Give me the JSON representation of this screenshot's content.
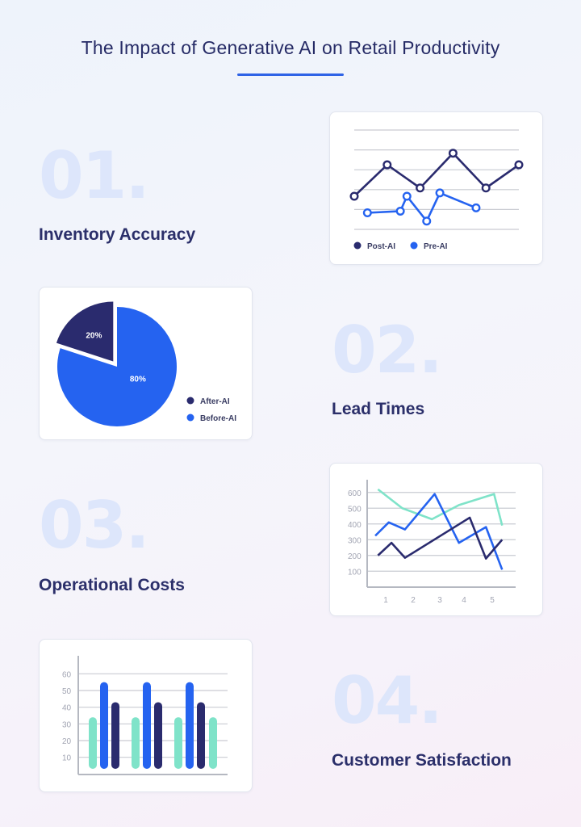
{
  "page": {
    "title": "The Impact of Generative AI on Retail Productivity"
  },
  "sections": [
    {
      "number": "01.",
      "label": "Inventory Accuracy"
    },
    {
      "number": "02.",
      "label": "Lead Times"
    },
    {
      "number": "03.",
      "label": "Operational Costs"
    },
    {
      "number": "04.",
      "label": "Customer Satisfaction"
    }
  ],
  "colors": {
    "navy": "#2a2b6e",
    "blue": "#2563f0",
    "mint": "#7fe3c9",
    "grid": "#c9cbd2",
    "text": "#262b66"
  },
  "chart_data": [
    {
      "type": "line",
      "title": "",
      "grid": true,
      "legend": "bottom",
      "ylim": [
        0,
        6
      ],
      "series": [
        {
          "name": "Post-AI",
          "color": "#2a2b6e",
          "points": [
            [
              1,
              2.0
            ],
            [
              2,
              3.9
            ],
            [
              3,
              2.5
            ],
            [
              4,
              4.6
            ],
            [
              5,
              2.5
            ],
            [
              6,
              3.9
            ]
          ]
        },
        {
          "name": "Pre-AI",
          "color": "#2563f0",
          "points": [
            [
              1.4,
              1.0
            ],
            [
              2.4,
              1.1
            ],
            [
              2.6,
              2.0
            ],
            [
              3.2,
              0.5
            ],
            [
              3.6,
              2.2
            ],
            [
              4.7,
              1.3
            ]
          ]
        }
      ]
    },
    {
      "type": "pie",
      "title": "",
      "legend": "right",
      "slices": [
        {
          "name": "After-AI",
          "value": 20,
          "label": "20%",
          "color": "#2a2b6e"
        },
        {
          "name": "Before-AI",
          "value": 80,
          "label": "80%",
          "color": "#2563f0"
        }
      ]
    },
    {
      "type": "line",
      "title": "",
      "grid": true,
      "x_ticks": [
        "1",
        "2",
        "3",
        "4",
        "5"
      ],
      "y_ticks": [
        "100",
        "200",
        "300",
        "400",
        "500",
        "600"
      ],
      "ylim": [
        50,
        650
      ],
      "xlim": [
        0.5,
        6.0
      ],
      "series": [
        {
          "color": "#7fe3c9",
          "points": [
            [
              0.9,
              620
            ],
            [
              1.8,
              500
            ],
            [
              2.9,
              430
            ],
            [
              3.9,
              520
            ],
            [
              5.2,
              590
            ],
            [
              5.5,
              390
            ]
          ]
        },
        {
          "color": "#2563f0",
          "points": [
            [
              0.8,
              325
            ],
            [
              1.3,
              410
            ],
            [
              1.9,
              365
            ],
            [
              3.0,
              590
            ],
            [
              3.9,
              280
            ],
            [
              4.9,
              380
            ],
            [
              5.5,
              110
            ]
          ]
        },
        {
          "color": "#2a2b6e",
          "points": [
            [
              0.9,
              200
            ],
            [
              1.4,
              280
            ],
            [
              1.9,
              185
            ],
            [
              4.3,
              440
            ],
            [
              4.9,
              180
            ],
            [
              5.5,
              300
            ]
          ]
        }
      ]
    },
    {
      "type": "bar",
      "title": "",
      "grid": true,
      "y_ticks": [
        "10",
        "20",
        "30",
        "40",
        "50",
        "60"
      ],
      "ylim": [
        5,
        65
      ],
      "groups": 3,
      "series": [
        {
          "color": "#7fe3c9",
          "values": [
            34,
            34,
            34
          ]
        },
        {
          "color": "#2563f0",
          "values": [
            55,
            55,
            55
          ]
        },
        {
          "color": "#2a2b6e",
          "values": [
            43,
            43,
            43
          ]
        }
      ],
      "trailing_bar": {
        "color": "#7fe3c9",
        "value": 34
      }
    }
  ]
}
